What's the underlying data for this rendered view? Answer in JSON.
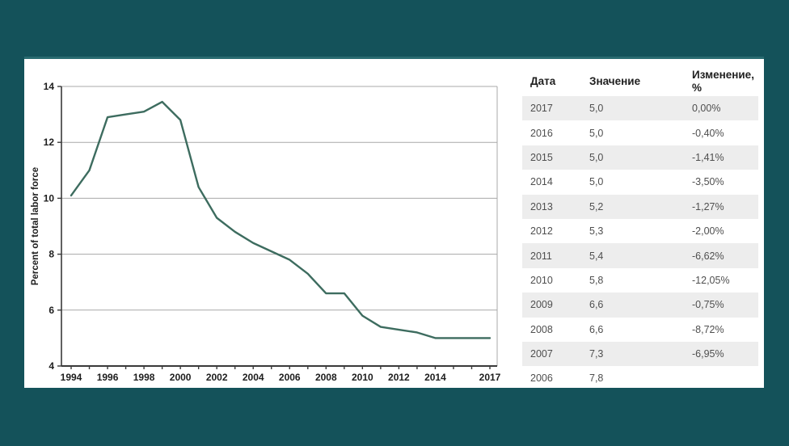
{
  "page": {
    "background_color": "#14525a",
    "card_color": "#ffffff"
  },
  "chart_data": {
    "type": "line",
    "title": "",
    "xlabel": "",
    "ylabel": "Percent of total labor force",
    "x": [
      1994,
      1995,
      1996,
      1997,
      1998,
      1999,
      2000,
      2001,
      2002,
      2003,
      2004,
      2005,
      2006,
      2007,
      2008,
      2009,
      2010,
      2011,
      2012,
      2013,
      2014,
      2015,
      2016,
      2017
    ],
    "values": [
      10.1,
      11.0,
      12.9,
      13.0,
      13.1,
      13.45,
      12.8,
      10.4,
      9.3,
      8.8,
      8.4,
      8.1,
      7.8,
      7.3,
      6.6,
      6.6,
      5.8,
      5.4,
      5.3,
      5.2,
      5.0,
      5.0,
      5.0,
      5.0
    ],
    "ylim": [
      4,
      14
    ],
    "yticks": [
      4,
      6,
      8,
      10,
      12,
      14
    ],
    "xtick_labels": [
      1994,
      1996,
      1998,
      2000,
      2002,
      2004,
      2006,
      2008,
      2010,
      2012,
      2014,
      2017
    ],
    "grid": true,
    "legend": "none",
    "line_color": "#3d6c5f",
    "grid_color": "#a8a8a8",
    "axis_color": "#3a3a3a"
  },
  "table": {
    "headers": [
      "Дата",
      "Значение",
      "Изменение, %"
    ],
    "rows": [
      [
        "2017",
        "5,0",
        "0,00%"
      ],
      [
        "2016",
        "5,0",
        "-0,40%"
      ],
      [
        "2015",
        "5,0",
        "-1,41%"
      ],
      [
        "2014",
        "5,0",
        "-3,50%"
      ],
      [
        "2013",
        "5,2",
        "-1,27%"
      ],
      [
        "2012",
        "5,3",
        "-2,00%"
      ],
      [
        "2011",
        "5,4",
        "-6,62%"
      ],
      [
        "2010",
        "5,8",
        "-12,05%"
      ],
      [
        "2009",
        "6,6",
        "-0,75%"
      ],
      [
        "2008",
        "6,6",
        "-8,72%"
      ],
      [
        "2007",
        "7,3",
        "-6,95%"
      ],
      [
        "2006",
        "7,8",
        ""
      ]
    ],
    "stripe_color": "#ededed"
  }
}
